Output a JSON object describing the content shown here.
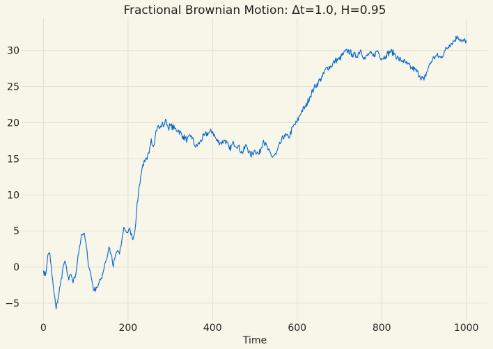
{
  "chart_data": {
    "type": "line",
    "title": "Fractional Brownian Motion: Δt=1.0, H=0.95",
    "xlabel": "Time",
    "ylabel": "",
    "xlim": [
      -50,
      1050
    ],
    "ylim": [
      -7.5,
      34.5
    ],
    "grid": true,
    "x_ticks": [
      0,
      200,
      400,
      600,
      800,
      1000
    ],
    "y_ticks": [
      -5,
      0,
      5,
      10,
      15,
      20,
      25,
      30
    ],
    "y_tick_labels": [
      "−5",
      "0",
      "5",
      "10",
      "15",
      "20",
      "25",
      "30"
    ],
    "line_color": "#0066cc",
    "series": [
      {
        "x": [
          0,
          5,
          10,
          15,
          20,
          25,
          30,
          35,
          40,
          45,
          50,
          55,
          60,
          65,
          70,
          75,
          80,
          85,
          90,
          95,
          100,
          105,
          110,
          115,
          120,
          125,
          130,
          135,
          140,
          145,
          150,
          155,
          160,
          165,
          170,
          175,
          180,
          185,
          190,
          195,
          200,
          205,
          210,
          215,
          220,
          225,
          230,
          235,
          240,
          245,
          250,
          255,
          260,
          265,
          270,
          275,
          280,
          285,
          290,
          295,
          300,
          310,
          320,
          330,
          340,
          350,
          360,
          370,
          380,
          390,
          400,
          410,
          420,
          430,
          440,
          450,
          460,
          470,
          480,
          490,
          500,
          510,
          520,
          530,
          540,
          550,
          560,
          570,
          580,
          590,
          600,
          610,
          620,
          630,
          640,
          650,
          660,
          670,
          680,
          690,
          700,
          710,
          720,
          730,
          740,
          750,
          760,
          770,
          780,
          790,
          800,
          810,
          820,
          830,
          840,
          850,
          860,
          870,
          880,
          890,
          900,
          910,
          920,
          930,
          940,
          950,
          960,
          970,
          980,
          990,
          1000
        ],
        "values": [
          -0.5,
          -1.2,
          1.5,
          2.0,
          -1.0,
          -3.5,
          -5.8,
          -4.2,
          -2.5,
          -0.5,
          0.8,
          -0.3,
          -1.8,
          -1.0,
          -2.2,
          -1.5,
          0.5,
          2.8,
          4.5,
          4.7,
          3.5,
          1.0,
          -0.5,
          -2.0,
          -3.3,
          -2.8,
          -2.5,
          -1.8,
          -1.0,
          0.5,
          1.2,
          2.8,
          1.8,
          0.0,
          1.5,
          2.3,
          1.8,
          3.5,
          5.5,
          5.0,
          4.8,
          5.2,
          4.0,
          4.5,
          7.5,
          10.5,
          12.5,
          14.2,
          14.6,
          14.9,
          15.8,
          17.8,
          16.7,
          18.5,
          19.5,
          19.2,
          19.8,
          19.6,
          20.4,
          19.3,
          19.6,
          19.2,
          18.9,
          18.1,
          17.6,
          18.2,
          16.6,
          17.3,
          18.2,
          18.6,
          18.8,
          17.5,
          17.2,
          17.6,
          16.3,
          17.2,
          16.8,
          15.8,
          16.9,
          15.4,
          16.2,
          15.6,
          17.6,
          16.4,
          15.3,
          15.6,
          17.1,
          18.3,
          17.9,
          19.4,
          20.1,
          21.6,
          22.2,
          23.6,
          24.8,
          25.6,
          26.4,
          27.6,
          27.8,
          28.6,
          28.8,
          29.6,
          30.0,
          29.5,
          29.2,
          30.1,
          28.8,
          29.6,
          29.2,
          30.0,
          28.9,
          29.3,
          29.9,
          29.6,
          28.8,
          28.6,
          28.1,
          27.6,
          27.3,
          26.5,
          25.9,
          27.6,
          28.8,
          29.3,
          29.0,
          30.0,
          30.8,
          31.3,
          32.0,
          31.2,
          31.4
        ]
      }
    ]
  }
}
